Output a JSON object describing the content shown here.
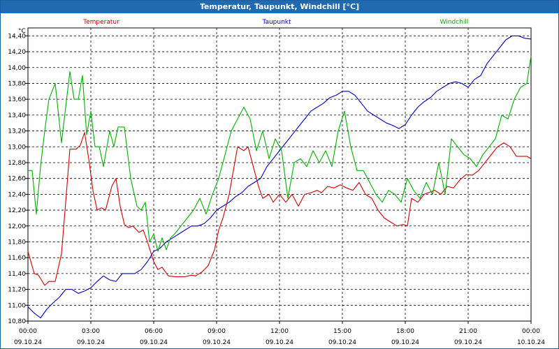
{
  "window": {
    "title": "Temperatur, Taupunkt, Windchill [°C]"
  },
  "chart_data": {
    "type": "line",
    "title": "Temperatur, Taupunkt, Windchill [°C]",
    "ylabel": "°C",
    "ylim": [
      10.8,
      14.5
    ],
    "xlim": [
      0,
      24
    ],
    "grid": true,
    "y_ticks": [
      "10,80",
      "11,00",
      "11,20",
      "11,40",
      "11,60",
      "11,80",
      "12,00",
      "12,20",
      "12,40",
      "12,60",
      "12,80",
      "13,00",
      "13,20",
      "13,40",
      "13,60",
      "13,80",
      "14,00",
      "14,20",
      "14,40"
    ],
    "x_ticks": [
      {
        "time": "00:00",
        "date": "09.10.24"
      },
      {
        "time": "03:00",
        "date": "09.10.24"
      },
      {
        "time": "06:00",
        "date": "09.10.24"
      },
      {
        "time": "09:00",
        "date": "09.10.24"
      },
      {
        "time": "12:00",
        "date": "09.10.24"
      },
      {
        "time": "15:00",
        "date": "09.10.24"
      },
      {
        "time": "18:00",
        "date": "09.10.24"
      },
      {
        "time": "21:00",
        "date": "09.10.24"
      },
      {
        "time": "00:00",
        "date": "10.10.24"
      }
    ],
    "series": [
      {
        "name": "Temperatur",
        "color": "#d00000",
        "x": [
          0,
          0.3,
          0.5,
          0.8,
          1,
          1.3,
          1.6,
          1.8,
          2,
          2.3,
          2.5,
          2.7,
          2.9,
          3.1,
          3.3,
          3.5,
          3.7,
          4,
          4.2,
          4.4,
          4.6,
          4.8,
          5,
          5.3,
          5.5,
          5.7,
          6,
          6.2,
          6.4,
          6.7,
          7,
          7.3,
          7.5,
          7.8,
          8,
          8.3,
          8.6,
          8.9,
          9.1,
          9.3,
          9.6,
          9.8,
          10,
          10.3,
          10.5,
          10.8,
          11,
          11.2,
          11.5,
          11.7,
          12,
          12.3,
          12.6,
          12.9,
          13.2,
          13.5,
          13.8,
          14,
          14.3,
          14.6,
          14.9,
          15.2,
          15.5,
          15.8,
          16.1,
          16.4,
          16.7,
          17,
          17.3,
          17.6,
          17.9,
          18.1,
          18.3,
          18.6,
          18.9,
          19.1,
          19.4,
          19.7,
          20,
          20.3,
          20.6,
          20.9,
          21.2,
          21.5,
          21.8,
          22.1,
          22.4,
          22.7,
          23,
          23.3,
          23.6,
          23.8,
          24
        ],
        "values": [
          11.68,
          11.4,
          11.38,
          11.25,
          11.3,
          11.3,
          11.65,
          12.3,
          12.97,
          12.97,
          13.02,
          13.18,
          12.85,
          12.45,
          12.2,
          12.23,
          12.2,
          12.5,
          12.6,
          12.25,
          12.02,
          11.98,
          12.0,
          11.92,
          11.95,
          11.8,
          11.55,
          11.45,
          11.48,
          11.37,
          11.36,
          11.36,
          11.36,
          11.38,
          11.37,
          11.42,
          11.5,
          11.7,
          11.95,
          12.1,
          12.4,
          12.7,
          13.0,
          12.95,
          13.0,
          12.7,
          12.5,
          12.35,
          12.4,
          12.3,
          12.4,
          12.3,
          12.4,
          12.25,
          12.4,
          12.42,
          12.45,
          12.42,
          12.5,
          12.48,
          12.52,
          12.48,
          12.45,
          12.55,
          12.4,
          12.35,
          12.2,
          12.1,
          12.05,
          12.0,
          12.02,
          12.0,
          12.35,
          12.3,
          12.4,
          12.42,
          12.45,
          12.4,
          12.5,
          12.48,
          12.58,
          12.65,
          12.64,
          12.7,
          12.8,
          12.9,
          13.0,
          13.05,
          13.0,
          12.88,
          12.88,
          12.88,
          12.85
        ]
      },
      {
        "name": "Taupunkt",
        "color": "#0000c0",
        "x": [
          0,
          0.3,
          0.6,
          0.9,
          1.2,
          1.5,
          1.8,
          2.1,
          2.4,
          2.7,
          3,
          3.3,
          3.6,
          3.9,
          4.2,
          4.5,
          4.8,
          5.1,
          5.4,
          5.7,
          6,
          6.3,
          6.6,
          6.9,
          7.2,
          7.5,
          7.8,
          8.1,
          8.4,
          8.7,
          9,
          9.3,
          9.6,
          9.9,
          10.2,
          10.5,
          10.8,
          11.1,
          11.4,
          11.7,
          12,
          12.3,
          12.6,
          12.9,
          13.2,
          13.5,
          13.8,
          14.1,
          14.4,
          14.7,
          15,
          15.3,
          15.6,
          15.9,
          16.2,
          16.5,
          16.8,
          17.1,
          17.4,
          17.7,
          18,
          18.3,
          18.6,
          18.9,
          19.2,
          19.5,
          19.8,
          20.1,
          20.4,
          20.7,
          21,
          21.3,
          21.6,
          21.9,
          22.2,
          22.5,
          22.8,
          23.1,
          23.4,
          23.7,
          24
        ],
        "values": [
          10.98,
          10.9,
          10.84,
          10.95,
          11.03,
          11.1,
          11.2,
          11.2,
          11.15,
          11.18,
          11.22,
          11.3,
          11.37,
          11.32,
          11.3,
          11.4,
          11.4,
          11.4,
          11.45,
          11.55,
          11.68,
          11.72,
          11.8,
          11.85,
          11.9,
          11.95,
          12.0,
          12.0,
          12.03,
          12.1,
          12.2,
          12.25,
          12.3,
          12.37,
          12.42,
          12.5,
          12.55,
          12.6,
          12.75,
          12.85,
          12.95,
          13.05,
          13.15,
          13.25,
          13.35,
          13.45,
          13.5,
          13.55,
          13.62,
          13.65,
          13.7,
          13.7,
          13.65,
          13.55,
          13.45,
          13.4,
          13.35,
          13.3,
          13.27,
          13.23,
          13.28,
          13.4,
          13.5,
          13.57,
          13.62,
          13.7,
          13.75,
          13.8,
          13.82,
          13.8,
          13.75,
          13.85,
          13.9,
          14.05,
          14.15,
          14.25,
          14.35,
          14.4,
          14.4,
          14.37,
          14.36
        ]
      },
      {
        "name": "Windchill",
        "color": "#00b000",
        "x": [
          0,
          0.2,
          0.4,
          0.6,
          0.8,
          1,
          1.3,
          1.6,
          1.8,
          2,
          2.2,
          2.4,
          2.6,
          2.8,
          3,
          3.2,
          3.4,
          3.6,
          3.9,
          4.1,
          4.3,
          4.6,
          4.9,
          5.2,
          5.4,
          5.6,
          5.8,
          6,
          6.2,
          6.4,
          6.6,
          6.8,
          7,
          7.3,
          7.6,
          7.9,
          8.2,
          8.5,
          8.8,
          9.1,
          9.4,
          9.7,
          10,
          10.3,
          10.6,
          10.9,
          11.2,
          11.5,
          11.8,
          12.1,
          12.4,
          12.7,
          13,
          13.3,
          13.6,
          13.9,
          14.2,
          14.5,
          14.8,
          15.1,
          15.4,
          15.7,
          16,
          16.3,
          16.6,
          16.9,
          17.2,
          17.5,
          17.8,
          18.1,
          18.4,
          18.7,
          19,
          19.3,
          19.6,
          19.9,
          20.2,
          20.5,
          20.8,
          21.1,
          21.4,
          21.7,
          22,
          22.3,
          22.6,
          22.9,
          23.2,
          23.5,
          23.8,
          24
        ],
        "values": [
          12.7,
          12.7,
          12.15,
          12.75,
          13.2,
          13.6,
          13.8,
          13.05,
          13.5,
          13.95,
          13.6,
          13.6,
          13.9,
          13.15,
          13.45,
          13.0,
          13.0,
          12.75,
          13.2,
          13.0,
          13.25,
          13.25,
          12.6,
          12.25,
          12.2,
          12.3,
          11.8,
          11.9,
          11.68,
          11.85,
          11.7,
          11.85,
          11.9,
          12.0,
          12.1,
          12.2,
          12.35,
          12.15,
          12.4,
          12.6,
          12.9,
          13.2,
          13.35,
          13.5,
          13.35,
          12.95,
          13.2,
          12.85,
          13.1,
          12.95,
          12.35,
          12.8,
          12.85,
          12.75,
          12.95,
          12.8,
          12.95,
          12.75,
          13.2,
          13.45,
          13.0,
          12.7,
          12.7,
          12.55,
          12.4,
          12.3,
          12.45,
          12.4,
          12.3,
          12.6,
          12.45,
          12.35,
          12.55,
          12.4,
          12.8,
          12.4,
          13.1,
          13.0,
          12.9,
          12.85,
          12.75,
          12.9,
          13.0,
          13.1,
          13.4,
          13.35,
          13.6,
          13.75,
          13.8,
          14.15
        ]
      }
    ]
  }
}
